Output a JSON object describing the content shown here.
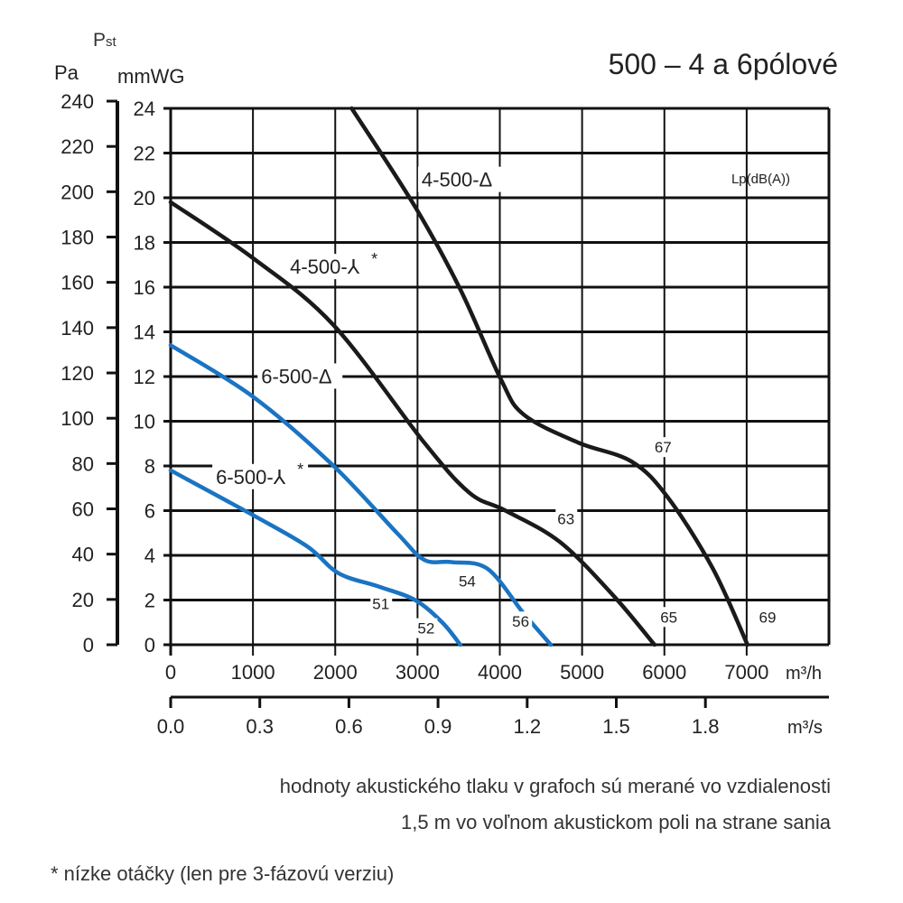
{
  "chart_data": {
    "type": "line",
    "title": "500 – 4 a 6pólové",
    "ylabel_symbol": "Pst",
    "ylabel_units": [
      "Pa",
      "mmWG"
    ],
    "xlabel_units": [
      "m³/h",
      "m³/s"
    ],
    "legend_heading": "Lp(dB(A))",
    "xlim": [
      0,
      8000
    ],
    "ylim": [
      0,
      24
    ],
    "x_ticks": [
      0,
      1000,
      2000,
      3000,
      4000,
      5000,
      6000,
      7000
    ],
    "y_ticks_mmwg": [
      0,
      2,
      4,
      6,
      8,
      10,
      12,
      14,
      16,
      18,
      20,
      22,
      24
    ],
    "y_ticks_pa": [
      0,
      20,
      40,
      60,
      80,
      100,
      120,
      140,
      160,
      180,
      200,
      220,
      240
    ],
    "x2_ticks_m3s": [
      "0.0",
      "0.3",
      "0.6",
      "0.9",
      "1.2",
      "1.5",
      "1.8"
    ],
    "grid": true,
    "series": [
      {
        "name": "4-500-Δ",
        "color": "#1a1a1a",
        "points": [
          [
            2200,
            24
          ],
          [
            2970,
            19.6
          ],
          [
            3520,
            15.9
          ],
          [
            4010,
            11.9
          ],
          [
            4290,
            10.3
          ],
          [
            4950,
            9.05
          ],
          [
            5600,
            8.2
          ],
          [
            6040,
            6.6
          ],
          [
            6590,
            3.4
          ],
          [
            7010,
            0
          ]
        ],
        "label_at": [
          3050,
          20.5
        ],
        "dB_labels": [
          {
            "text": "67",
            "at": [
              5880,
              8.6
            ]
          },
          {
            "text": "69",
            "at": [
              7150,
              1.0
            ]
          }
        ]
      },
      {
        "name": "4-500-⅄*",
        "color": "#1a1a1a",
        "points": [
          [
            0,
            19.8
          ],
          [
            1000,
            17.3
          ],
          [
            1980,
            14.3
          ],
          [
            3080,
            9.05
          ],
          [
            3630,
            6.8
          ],
          [
            4070,
            6.0
          ],
          [
            4730,
            4.6
          ],
          [
            5380,
            2.2
          ],
          [
            5880,
            0
          ]
        ],
        "label_at": [
          1450,
          16.6
        ],
        "dB_labels": [
          {
            "text": "63",
            "at": [
              4700,
              5.4
            ]
          },
          {
            "text": "65",
            "at": [
              5950,
              1.0
            ]
          }
        ]
      },
      {
        "name": "6-500-Δ",
        "color": "#1a74c2",
        "points": [
          [
            0,
            13.4
          ],
          [
            1000,
            11.1
          ],
          [
            1980,
            8.0
          ],
          [
            2750,
            5.0
          ],
          [
            3080,
            3.8
          ],
          [
            3410,
            3.7
          ],
          [
            3850,
            3.4
          ],
          [
            4290,
            1.4
          ],
          [
            4620,
            0
          ]
        ],
        "label_at": [
          1100,
          11.7
        ],
        "dB_labels": [
          {
            "text": "54",
            "at": [
              3500,
              2.6
            ]
          },
          {
            "text": "56",
            "at": [
              4150,
              0.8
            ]
          }
        ]
      },
      {
        "name": "6-500-⅄*",
        "color": "#1a74c2",
        "points": [
          [
            0,
            7.8
          ],
          [
            1000,
            5.8
          ],
          [
            1660,
            4.4
          ],
          [
            2040,
            3.2
          ],
          [
            2530,
            2.6
          ],
          [
            2970,
            2.0
          ],
          [
            3300,
            1.0
          ],
          [
            3520,
            0
          ]
        ],
        "label_at": [
          550,
          7.2
        ],
        "dB_labels": [
          {
            "text": "51",
            "at": [
              2450,
              1.6
            ]
          },
          {
            "text": "52",
            "at": [
              3000,
              0.5
            ]
          }
        ]
      }
    ]
  },
  "notes": {
    "line1": "hodnoty akustického tlaku v grafoch sú merané vo vzdialenosti",
    "line2": "1,5 m vo voľnom akustickom poli na strane sania",
    "footnote": "* nízke otáčky (len pre 3-fázovú verziu)"
  }
}
